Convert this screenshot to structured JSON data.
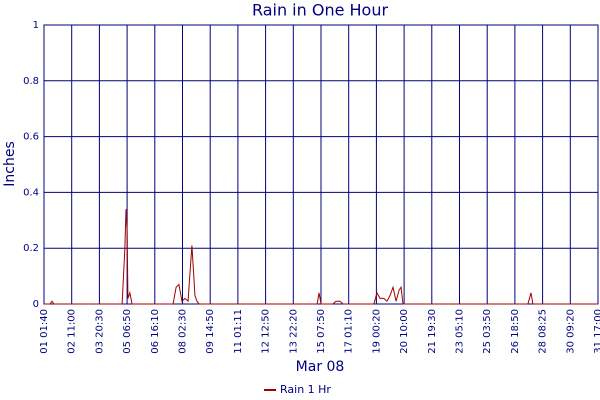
{
  "chart_data": {
    "type": "line",
    "title": "Rain in One Hour",
    "x_label": "Mar 08",
    "y_label": "Inches",
    "x": [
      0,
      0.22,
      0.29,
      0.36,
      2.82,
      2.92,
      2.96,
      3.0,
      3.03,
      3.1,
      3.18,
      4.66,
      4.77,
      4.87,
      4.98,
      5.09,
      5.2,
      5.34,
      5.45,
      5.52,
      5.6,
      9.86,
      9.93,
      10.0,
      10.43,
      10.54,
      10.69,
      10.79,
      11.91,
      12.02,
      12.13,
      12.27,
      12.38,
      12.49,
      12.6,
      12.71,
      12.82,
      12.89,
      12.96,
      17.47,
      17.58,
      17.65,
      20
    ],
    "series": [
      {
        "name": "Rain 1 Hr",
        "color": "#a00000",
        "values": [
          0,
          0,
          0.01,
          0,
          0,
          0.2,
          0.34,
          0.26,
          0.02,
          0.04,
          0,
          0,
          0.06,
          0.07,
          0.01,
          0.02,
          0.01,
          0.21,
          0.03,
          0.01,
          0,
          0,
          0.04,
          0,
          0,
          0.01,
          0.01,
          0,
          0,
          0.04,
          0.02,
          0.02,
          0.01,
          0.03,
          0.06,
          0.01,
          0.05,
          0.06,
          0,
          0,
          0.04,
          0,
          0
        ]
      }
    ],
    "xlim": [
      0,
      20
    ],
    "xticks": [
      {
        "value": 0,
        "label": "01 01:40"
      },
      {
        "value": 1,
        "label": "02 11:00"
      },
      {
        "value": 2,
        "label": "03 20:30"
      },
      {
        "value": 3,
        "label": "05 06:50"
      },
      {
        "value": 4,
        "label": "06 16:10"
      },
      {
        "value": 5,
        "label": "08 02:30"
      },
      {
        "value": 6,
        "label": "09 14:50"
      },
      {
        "value": 7,
        "label": "11 01:11"
      },
      {
        "value": 8,
        "label": "12 12:50"
      },
      {
        "value": 9,
        "label": "13 22:20"
      },
      {
        "value": 10,
        "label": "15 07:50"
      },
      {
        "value": 11,
        "label": "17 01:10"
      },
      {
        "value": 12,
        "label": "19 00:20"
      },
      {
        "value": 13,
        "label": "20 10:00"
      },
      {
        "value": 14,
        "label": "21 19:30"
      },
      {
        "value": 15,
        "label": "23 05:10"
      },
      {
        "value": 16,
        "label": "25 03:50"
      },
      {
        "value": 17,
        "label": "26 18:50"
      },
      {
        "value": 18,
        "label": "28 08:25"
      },
      {
        "value": 19,
        "label": "30 09:20"
      },
      {
        "value": 20,
        "label": "31 17:00"
      }
    ],
    "ylim": [
      0,
      1
    ],
    "yticks": [
      0,
      0.2,
      0.4,
      0.6,
      0.8,
      1
    ],
    "grid": true,
    "grid_color": "#000080"
  }
}
